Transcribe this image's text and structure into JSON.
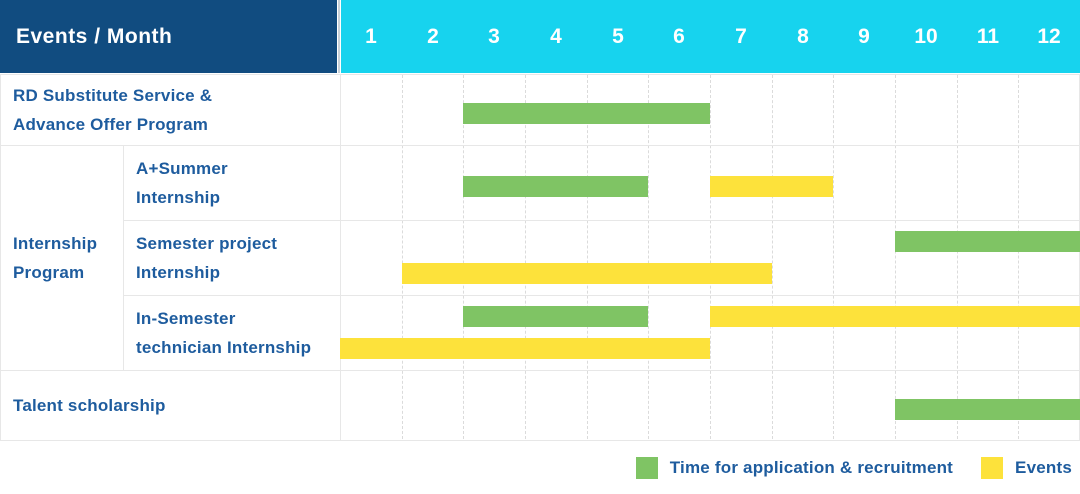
{
  "header": {
    "title_cell": "Events / Month",
    "months": [
      "1",
      "2",
      "3",
      "4",
      "5",
      "6",
      "7",
      "8",
      "9",
      "10",
      "11",
      "12"
    ]
  },
  "colors": {
    "header_bg": "#114C80",
    "months_bg": "#17D3EE",
    "application_green": "#7FC464",
    "event_yellow": "#FDE23B",
    "text_blue": "#1E5C9E",
    "header_text": "#FFFFFF",
    "grid_solid": "#E7E7E7",
    "grid_dash": "#DBDBDB",
    "header_divider": "#C9D1D8"
  },
  "group_label": {
    "lines": [
      "Internship",
      "Program"
    ]
  },
  "rows": [
    {
      "id": "rd-substitute",
      "label_span": "full",
      "lines": [
        "RD Substitute Service &",
        "Advance Offer Program"
      ],
      "bars": [
        {
          "kind": "application",
          "start": 3,
          "end": 6,
          "lane": "mid"
        }
      ]
    },
    {
      "id": "a-summer-internship",
      "label_span": "sub",
      "lines": [
        "A+Summer",
        "Internship"
      ],
      "bars": [
        {
          "kind": "application",
          "start": 3,
          "end": 5,
          "lane": "mid"
        },
        {
          "kind": "event",
          "start": 7,
          "end": 8,
          "lane": "mid"
        }
      ]
    },
    {
      "id": "semester-project-internship",
      "label_span": "sub",
      "lines": [
        "Semester project",
        "Internship"
      ],
      "bars": [
        {
          "kind": "application",
          "start": 10,
          "end": 12,
          "lane": "top"
        },
        {
          "kind": "event",
          "start": 2,
          "end": 7,
          "lane": "bottom"
        }
      ]
    },
    {
      "id": "in-semester-technician-internship",
      "label_span": "sub",
      "lines": [
        "In-Semester",
        "technician Internship"
      ],
      "bars": [
        {
          "kind": "application",
          "start": 3,
          "end": 5,
          "lane": "top"
        },
        {
          "kind": "event",
          "start": 7,
          "end": 12,
          "lane": "top"
        },
        {
          "kind": "event",
          "start": 1,
          "end": 6,
          "lane": "bottom"
        }
      ]
    },
    {
      "id": "talent-scholarship",
      "label_span": "full",
      "lines": [
        "Talent scholarship"
      ],
      "bars": [
        {
          "kind": "application",
          "start": 10,
          "end": 12,
          "lane": "mid"
        }
      ]
    }
  ],
  "legend": {
    "items": [
      {
        "key": "application",
        "label": "Time for application & recruitment"
      },
      {
        "key": "event",
        "label": "Events"
      }
    ]
  },
  "chart_data": {
    "type": "gantt",
    "title": "Events / Month",
    "x_axis": {
      "label": "Month",
      "ticks": [
        1,
        2,
        3,
        4,
        5,
        6,
        7,
        8,
        9,
        10,
        11,
        12
      ],
      "range": [
        1,
        12
      ]
    },
    "grid": "dotted vertical month lines",
    "legend_position": "bottom-right",
    "legend": {
      "green": "Time for application & recruitment",
      "yellow": "Events"
    },
    "tasks": [
      {
        "row": "RD Substitute Service & Advance Offer Program",
        "group": null,
        "spans": [
          {
            "kind": "application & recruitment",
            "months": [
              3,
              6
            ]
          }
        ]
      },
      {
        "row": "A+Summer Internship",
        "group": "Internship Program",
        "spans": [
          {
            "kind": "application & recruitment",
            "months": [
              3,
              5
            ]
          },
          {
            "kind": "events",
            "months": [
              7,
              8
            ]
          }
        ]
      },
      {
        "row": "Semester project Internship",
        "group": "Internship Program",
        "spans": [
          {
            "kind": "application & recruitment",
            "months": [
              10,
              12
            ]
          },
          {
            "kind": "events",
            "months": [
              2,
              7
            ]
          }
        ]
      },
      {
        "row": "In-Semester technician Internship",
        "group": "Internship Program",
        "spans": [
          {
            "kind": "application & recruitment",
            "months": [
              3,
              5
            ]
          },
          {
            "kind": "events",
            "months": [
              7,
              12
            ]
          },
          {
            "kind": "events",
            "months": [
              1,
              6
            ]
          }
        ]
      },
      {
        "row": "Talent scholarship",
        "group": null,
        "spans": [
          {
            "kind": "application & recruitment",
            "months": [
              10,
              12
            ]
          }
        ]
      }
    ]
  }
}
